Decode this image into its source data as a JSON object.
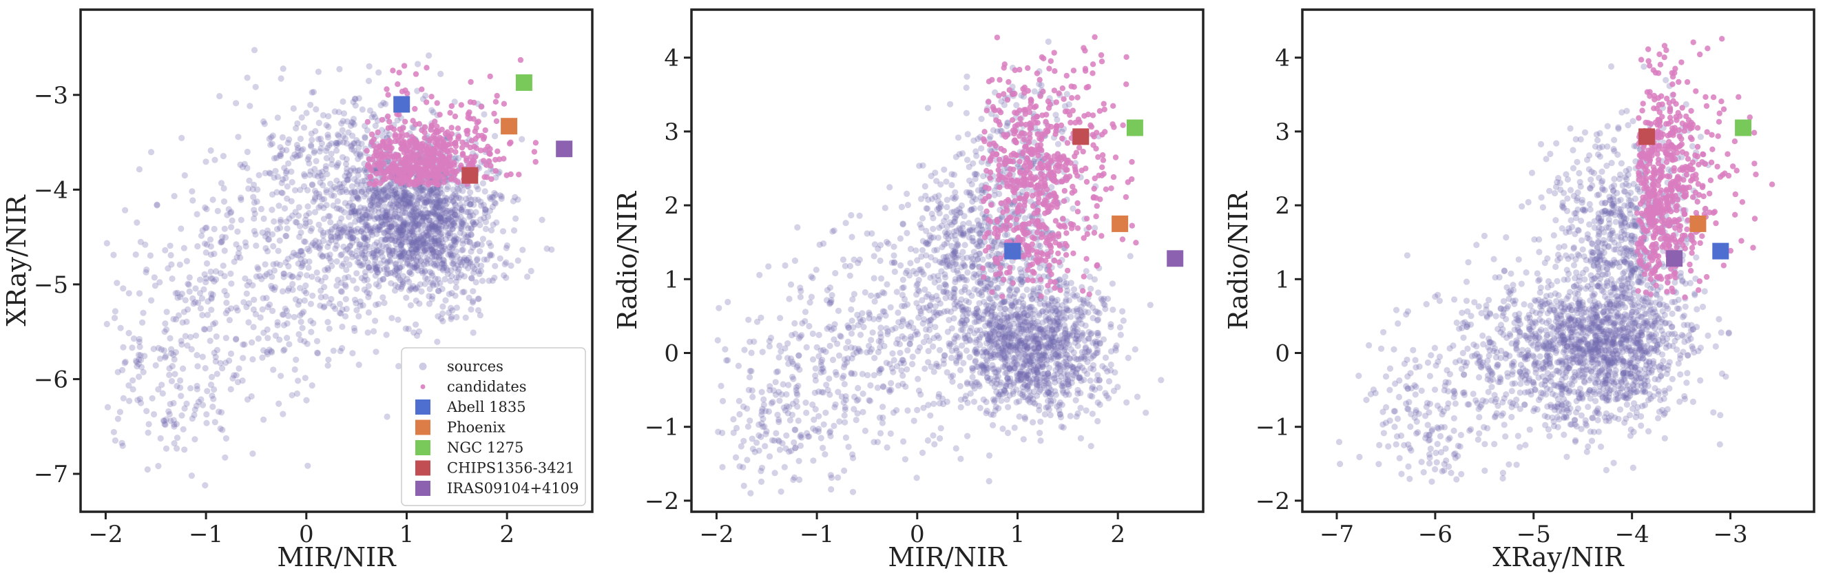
{
  "colors": {
    "sources": "#6f6aae",
    "candidates": "#d97cc0",
    "abell": "#4e6fcf",
    "phoenix": "#dc7d47",
    "ngc": "#78c85a",
    "chips": "#c04e52",
    "iras": "#8c62b0",
    "axis": "#222222"
  },
  "legend": {
    "sources": "sources",
    "candidates": "candidates",
    "abell": "Abell 1835",
    "phoenix": "Phoenix",
    "ngc": "NGC 1275",
    "chips": "CHIPS1356-3421",
    "iras": "IRAS09104+4109"
  },
  "chart_data": [
    {
      "type": "scatter",
      "xlabel": "MIR/NIR",
      "ylabel": "XRay/NIR",
      "xlim": [
        -2.25,
        2.85
      ],
      "ylim": [
        -7.4,
        -2.1
      ],
      "xticks": [
        -2,
        -1,
        0,
        1,
        2
      ],
      "yticks": [
        -7,
        -6,
        -5,
        -4,
        -3
      ],
      "xtick_labels": [
        "−2",
        "−1",
        "0",
        "1",
        "2"
      ],
      "ytick_labels": [
        "−7",
        "−6",
        "−5",
        "−4",
        "−3"
      ],
      "legend_position": "lower-right",
      "point_clouds": {
        "sources": {
          "note": "diffuse cloud, ~2500 points",
          "clusters": [
            {
              "cx": 1.15,
              "cy": -4.35,
              "sx": 0.38,
              "sy": 0.42,
              "n": 1300
            },
            {
              "cx": 0.5,
              "cy": -4.0,
              "sx": 0.55,
              "sy": 0.55,
              "n": 600
            },
            {
              "cx": -0.4,
              "cy": -5.0,
              "sx": 0.7,
              "sy": 0.65,
              "n": 450
            },
            {
              "cx": -1.4,
              "cy": -6.1,
              "sx": 0.35,
              "sy": 0.5,
              "n": 150
            }
          ],
          "xrange": [
            -2.0,
            2.6
          ],
          "yrange": [
            -7.2,
            -2.35
          ]
        },
        "candidates": {
          "clusters": [
            {
              "cx": 1.1,
              "cy": -3.75,
              "sx": 0.3,
              "sy": 0.22,
              "n": 500
            },
            {
              "cx": 1.4,
              "cy": -3.5,
              "sx": 0.45,
              "sy": 0.35,
              "n": 150
            }
          ],
          "xrange": [
            0.6,
            2.3
          ],
          "yrange": [
            -3.95,
            -2.45
          ]
        }
      },
      "named_points": [
        {
          "key": "abell",
          "x": 0.95,
          "y": -3.1
        },
        {
          "key": "phoenix",
          "x": 2.02,
          "y": -3.33
        },
        {
          "key": "ngc",
          "x": 2.17,
          "y": -2.87
        },
        {
          "key": "chips",
          "x": 1.63,
          "y": -3.85
        },
        {
          "key": "iras",
          "x": 2.57,
          "y": -3.57
        }
      ]
    },
    {
      "type": "scatter",
      "xlabel": "MIR/NIR",
      "ylabel": "Radio/NIR",
      "xlim": [
        -2.25,
        2.85
      ],
      "ylim": [
        -2.15,
        4.65
      ],
      "xticks": [
        -2,
        -1,
        0,
        1,
        2
      ],
      "yticks": [
        -2,
        -1,
        0,
        1,
        2,
        3,
        4
      ],
      "xtick_labels": [
        "−2",
        "−1",
        "0",
        "1",
        "2"
      ],
      "ytick_labels": [
        "−2",
        "−1",
        "0",
        "1",
        "2",
        "3",
        "4"
      ],
      "point_clouds": {
        "sources": {
          "clusters": [
            {
              "cx": 1.15,
              "cy": 0.05,
              "sx": 0.38,
              "sy": 0.5,
              "n": 1100
            },
            {
              "cx": 0.6,
              "cy": 1.3,
              "sx": 0.45,
              "sy": 0.6,
              "n": 600
            },
            {
              "cx": 1.0,
              "cy": 2.6,
              "sx": 0.3,
              "sy": 0.6,
              "n": 250
            },
            {
              "cx": -0.5,
              "cy": 0.0,
              "sx": 0.6,
              "sy": 0.7,
              "n": 400
            },
            {
              "cx": -1.4,
              "cy": -1.0,
              "sx": 0.35,
              "sy": 0.5,
              "n": 150
            }
          ],
          "xrange": [
            -2.0,
            2.6
          ],
          "yrange": [
            -1.9,
            4.25
          ]
        },
        "candidates": {
          "clusters": [
            {
              "cx": 1.1,
              "cy": 2.2,
              "sx": 0.3,
              "sy": 0.8,
              "n": 550
            },
            {
              "cx": 1.5,
              "cy": 2.8,
              "sx": 0.35,
              "sy": 0.7,
              "n": 150
            }
          ],
          "xrange": [
            0.65,
            2.3
          ],
          "yrange": [
            0.75,
            4.3
          ]
        }
      },
      "named_points": [
        {
          "key": "abell",
          "x": 0.95,
          "y": 1.38
        },
        {
          "key": "phoenix",
          "x": 2.02,
          "y": 1.75
        },
        {
          "key": "ngc",
          "x": 2.17,
          "y": 3.05
        },
        {
          "key": "chips",
          "x": 1.63,
          "y": 2.93
        },
        {
          "key": "iras",
          "x": 2.57,
          "y": 1.28
        }
      ]
    },
    {
      "type": "scatter",
      "xlabel": "XRay/NIR",
      "ylabel": "Radio/NIR",
      "xlim": [
        -7.35,
        -2.15
      ],
      "ylim": [
        -2.15,
        4.65
      ],
      "xticks": [
        -7,
        -6,
        -5,
        -4,
        -3
      ],
      "yticks": [
        -2,
        -1,
        0,
        1,
        2,
        3,
        4
      ],
      "xtick_labels": [
        "−7",
        "−6",
        "−5",
        "−4",
        "−3"
      ],
      "ytick_labels": [
        "−2",
        "−1",
        "0",
        "1",
        "2",
        "3",
        "4"
      ],
      "point_clouds": {
        "sources": {
          "clusters": [
            {
              "cx": -4.3,
              "cy": 0.05,
              "sx": 0.45,
              "sy": 0.5,
              "n": 1100
            },
            {
              "cx": -4.1,
              "cy": 1.6,
              "sx": 0.35,
              "sy": 0.8,
              "n": 700
            },
            {
              "cx": -5.1,
              "cy": 0.0,
              "sx": 0.6,
              "sy": 0.6,
              "n": 400
            },
            {
              "cx": -6.1,
              "cy": -1.0,
              "sx": 0.35,
              "sy": 0.5,
              "n": 150
            }
          ],
          "xrange": [
            -7.1,
            -3.0
          ],
          "yrange": [
            -1.9,
            4.25
          ]
        },
        "candidates": {
          "clusters": [
            {
              "cx": -3.75,
              "cy": 2.2,
              "sx": 0.2,
              "sy": 0.8,
              "n": 550
            },
            {
              "cx": -3.4,
              "cy": 2.5,
              "sx": 0.35,
              "sy": 0.7,
              "n": 150
            }
          ],
          "xrange": [
            -3.95,
            -2.4
          ],
          "yrange": [
            0.75,
            4.3
          ]
        }
      },
      "named_points": [
        {
          "key": "abell",
          "x": -3.1,
          "y": 1.38
        },
        {
          "key": "phoenix",
          "x": -3.33,
          "y": 1.75
        },
        {
          "key": "ngc",
          "x": -2.87,
          "y": 3.05
        },
        {
          "key": "chips",
          "x": -3.85,
          "y": 2.93
        },
        {
          "key": "iras",
          "x": -3.57,
          "y": 1.28
        }
      ]
    }
  ]
}
